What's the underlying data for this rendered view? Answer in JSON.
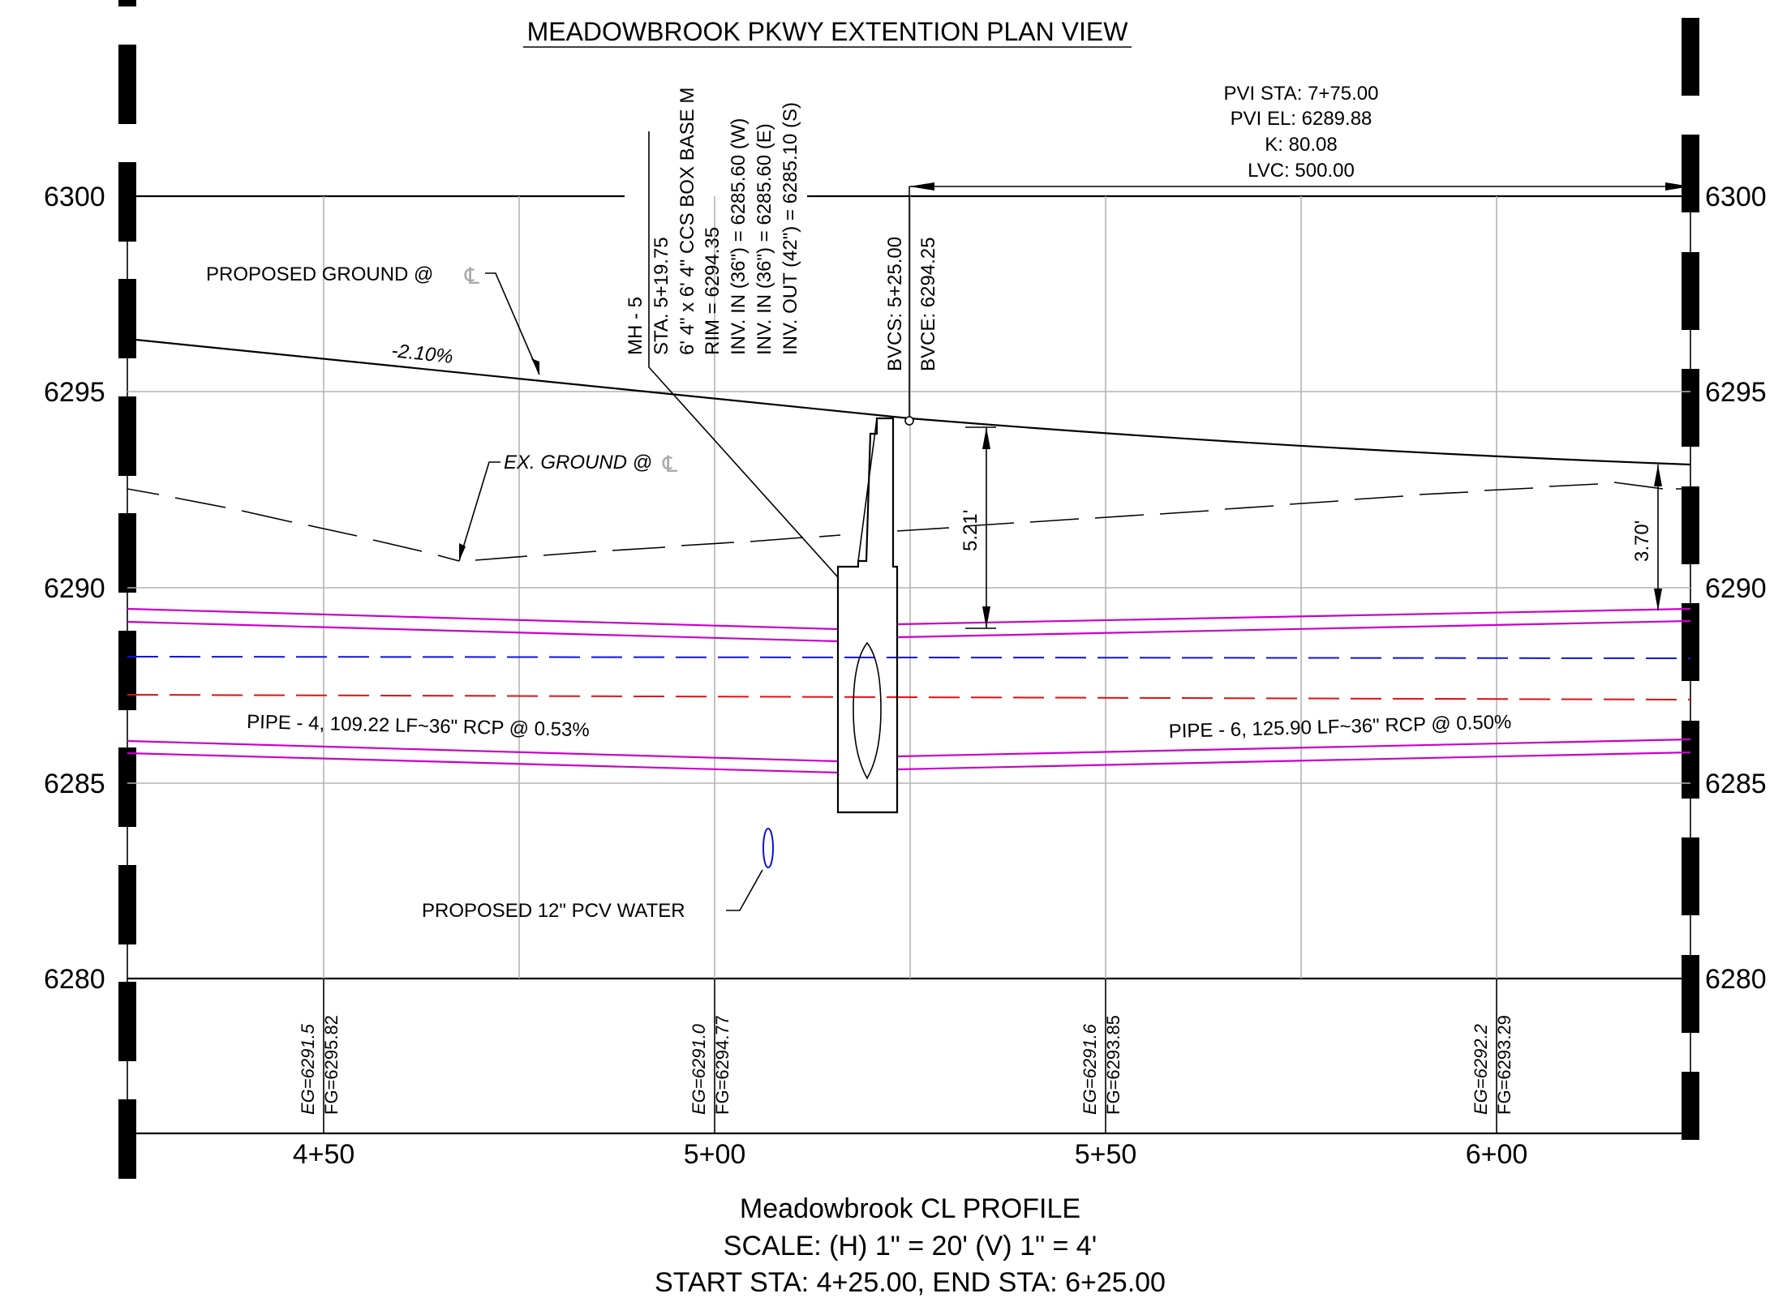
{
  "title": "MEADOWBROOK PKWY EXTENTION PLAN VIEW",
  "footer": {
    "profile_name": "Meadowbrook CL PROFILE",
    "scale": "SCALE: (H) 1\" = 20' (V) 1\" = 4'",
    "stations": "START STA: 4+25.00, END STA: 6+25.00"
  },
  "elevation_labels": [
    "6300",
    "6295",
    "6290",
    "6285",
    "6280"
  ],
  "station_labels": [
    "4+50",
    "5+00",
    "5+50",
    "6+00"
  ],
  "station_readouts": [
    {
      "eg": "EG=6291.5",
      "fg": "FG=6295.82"
    },
    {
      "eg": "EG=6291.0",
      "fg": "FG=6294.77"
    },
    {
      "eg": "EG=6291.6",
      "fg": "FG=6293.85"
    },
    {
      "eg": "EG=6292.2",
      "fg": "FG=6293.29"
    }
  ],
  "pvi": {
    "sta": "PVI STA: 7+75.00",
    "el": "PVI EL: 6289.88",
    "k": "K: 80.08",
    "lvc": "LVC: 500.00"
  },
  "bvc": {
    "bvcs": "BVCS: 5+25.00",
    "bvce": "BVCE: 6294.25"
  },
  "manhole": {
    "lines": [
      "MH - 5",
      "STA. 5+19.75",
      "6' 4\" x 6' 4\" CCS BOX BASE M",
      "RIM = 6294.35",
      "INV. IN (36\") = 6285.60 (W)",
      "INV. IN (36\") = 6285.60 (E)",
      "INV. OUT (42\") = 6285.10 (S)"
    ]
  },
  "annotations": {
    "proposed_ground": "PROPOSED GROUND @",
    "ex_ground": "EX. GROUND @",
    "centerline_symbol": "℄",
    "grade": "-2.10%",
    "pipe4": "PIPE - 4, 109.22 LF~36\" RCP @ 0.53%",
    "pipe6": "PIPE - 6, 125.90 LF~36\" RCP @ 0.50%",
    "water": "PROPOSED 12\" PCV WATER",
    "dim_left": "5.21'",
    "dim_right": "3.70'"
  },
  "colors": {
    "pipe": "#c800c8",
    "water_line": "#1010e0",
    "sewer_line": "#e01010",
    "grid": "#b4b4b4"
  }
}
